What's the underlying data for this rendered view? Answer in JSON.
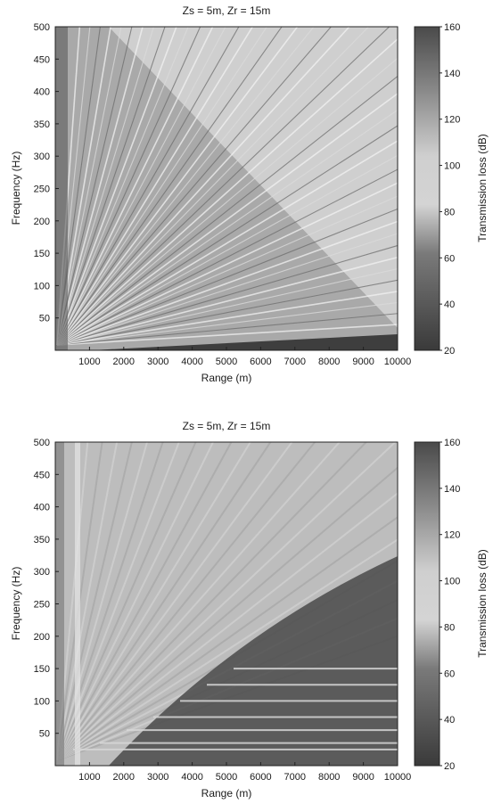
{
  "chart_data": [
    {
      "type": "heatmap",
      "title": "Zs = 5m, Zr = 15m",
      "xlabel": "Range (m)",
      "ylabel": "Frequency (Hz)",
      "xlim": [
        0,
        10000
      ],
      "ylim": [
        0,
        500
      ],
      "xticks": [
        1000,
        2000,
        3000,
        4000,
        5000,
        6000,
        7000,
        8000,
        9000,
        10000
      ],
      "yticks": [
        50,
        100,
        150,
        200,
        250,
        300,
        350,
        400,
        450,
        500
      ],
      "colorbar": {
        "label": "Transmission loss (dB)",
        "range": [
          20,
          160
        ],
        "ticks": [
          20,
          40,
          60,
          80,
          100,
          120,
          140,
          160
        ],
        "colormap": "grayscale"
      },
      "description_of_field": "Interference striation pattern: bright and dark bands radiating from near the origin, fanning out across the range-frequency plane; a dark low-loss strip near the bottom below roughly 25 Hz."
    },
    {
      "type": "heatmap",
      "title": "Zs = 5m, Zr = 15m",
      "xlabel": "Range (m)",
      "ylabel": "Frequency (Hz)",
      "xlim": [
        0,
        10000
      ],
      "ylim": [
        0,
        500
      ],
      "xticks": [
        1000,
        2000,
        3000,
        4000,
        5000,
        6000,
        7000,
        8000,
        9000,
        10000
      ],
      "yticks": [
        50,
        100,
        150,
        200,
        250,
        300,
        350,
        400,
        450,
        500
      ],
      "colorbar": {
        "label": "Transmission loss (dB)",
        "range": [
          20,
          160
        ],
        "ticks": [
          20,
          40,
          60,
          80,
          100,
          120,
          140,
          160
        ],
        "colormap": "grayscale"
      },
      "description_of_field": "Fainter striations at short range; a dark high-loss region in the lower right with horizontal modal bands near 25, 35, 55, 75, 100, 125 and 150 Hz."
    }
  ]
}
